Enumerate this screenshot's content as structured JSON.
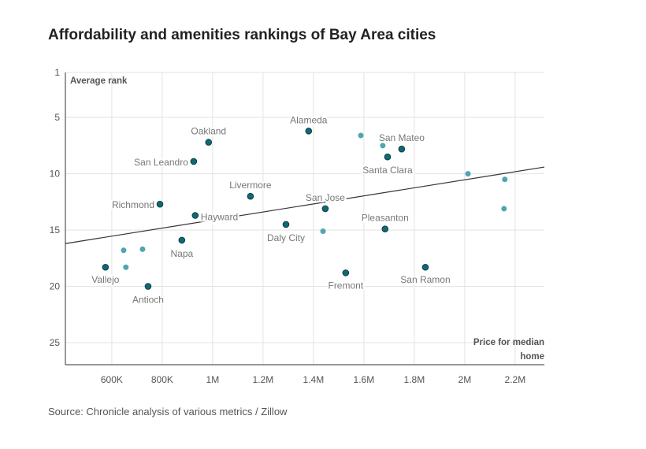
{
  "title": "Affordability and amenities rankings of Bay Area cities",
  "source": "Source: Chronicle analysis of various metrics / Zillow",
  "chart_data": {
    "type": "scatter",
    "title": "Affordability and amenities rankings of Bay Area cities",
    "xlabel": "Price for median home",
    "ylabel": "Average rank",
    "xlim": [
      416000,
      2316000
    ],
    "ylim": [
      1,
      27
    ],
    "y_inverted": true,
    "grid": true,
    "x_ticks": [
      {
        "v": 600000,
        "label": "600K"
      },
      {
        "v": 800000,
        "label": "800K"
      },
      {
        "v": 1000000,
        "label": "1M"
      },
      {
        "v": 1200000,
        "label": "1.2M"
      },
      {
        "v": 1400000,
        "label": "1.4M"
      },
      {
        "v": 1600000,
        "label": "1.6M"
      },
      {
        "v": 1800000,
        "label": "1.8M"
      },
      {
        "v": 2000000,
        "label": "2M"
      },
      {
        "v": 2200000,
        "label": "2.2M"
      }
    ],
    "y_ticks": [
      1,
      5,
      10,
      15,
      20,
      25
    ],
    "colors": {
      "labeled": "#0d6a77",
      "unlabeled": "#52a4b1",
      "outline": "#163c42",
      "trend": "#333333"
    },
    "labeled_points": [
      {
        "city": "Vallejo",
        "x": 575000,
        "y": 18.3
      },
      {
        "city": "Antioch",
        "x": 744000,
        "y": 20.0
      },
      {
        "city": "Richmond",
        "x": 791000,
        "y": 12.7
      },
      {
        "city": "Napa",
        "x": 878000,
        "y": 15.9
      },
      {
        "city": "San Leandro",
        "x": 925000,
        "y": 8.9
      },
      {
        "city": "Hayward",
        "x": 931000,
        "y": 13.7
      },
      {
        "city": "Oakland",
        "x": 984000,
        "y": 7.2
      },
      {
        "city": "Livermore",
        "x": 1150000,
        "y": 12.0
      },
      {
        "city": "Daly City",
        "x": 1291000,
        "y": 14.5
      },
      {
        "city": "Alameda",
        "x": 1381000,
        "y": 6.2
      },
      {
        "city": "San Jose",
        "x": 1447000,
        "y": 13.1
      },
      {
        "city": "Fremont",
        "x": 1528000,
        "y": 18.8
      },
      {
        "city": "Pleasanton",
        "x": 1684000,
        "y": 14.9
      },
      {
        "city": "Santa Clara",
        "x": 1694000,
        "y": 8.5
      },
      {
        "city": "San Mateo",
        "x": 1750000,
        "y": 7.8
      },
      {
        "city": "San Ramon",
        "x": 1844000,
        "y": 18.3
      }
    ],
    "unlabeled_points": [
      {
        "x": 647000,
        "y": 16.8
      },
      {
        "x": 656000,
        "y": 18.3
      },
      {
        "x": 722000,
        "y": 16.7
      },
      {
        "x": 1438000,
        "y": 15.1
      },
      {
        "x": 1588000,
        "y": 6.6
      },
      {
        "x": 1675000,
        "y": 7.5
      },
      {
        "x": 2013000,
        "y": 10.0
      },
      {
        "x": 2159000,
        "y": 10.5
      },
      {
        "x": 2156000,
        "y": 13.1
      }
    ],
    "trend_line": [
      {
        "x": 416000,
        "y": 16.2
      },
      {
        "x": 2316000,
        "y": 9.4
      }
    ]
  }
}
